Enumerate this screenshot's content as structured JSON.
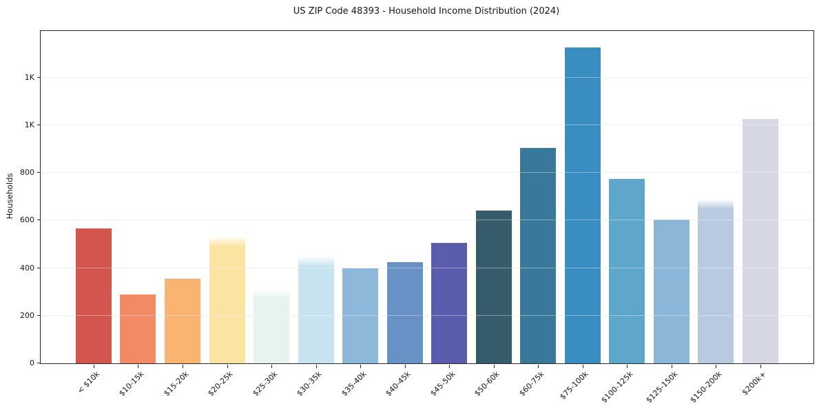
{
  "figure": {
    "kind": "static-matplotlib-figure",
    "background": "#ffffff"
  },
  "chart_data": {
    "type": "bar",
    "title": "US ZIP Code 48393 - Household Income Distribution (2024)",
    "xlabel": "",
    "ylabel": "Households",
    "categories": [
      "< $10k",
      "$10-15k",
      "$15-20k",
      "$20-25k",
      "$25-30k",
      "$30-35k",
      "$35-40k",
      "$40-45k",
      "$45-50k",
      "$50-60k",
      "$60-75k",
      "$75-100k",
      "$100-125k",
      "$125-150k",
      "$150-200k",
      "$200k+"
    ],
    "values": [
      565,
      290,
      355,
      530,
      310,
      445,
      400,
      425,
      505,
      640,
      905,
      1325,
      775,
      605,
      685,
      1025
    ],
    "bar_colors": [
      "#d4544e",
      "#f28a66",
      "#fab471",
      "#fbe3a2",
      "#e7f3f0",
      "#c6e3ef",
      "#8db8d9",
      "#6891c5",
      "#5a5dab",
      "#365c6c",
      "#38789a",
      "#398dc0",
      "#5fa6cb",
      "#8cb6d7",
      "#b9c9df",
      "#d5d7e5"
    ],
    "soft_top_bars": [
      3,
      4,
      5,
      14
    ],
    "y_ticks": {
      "values": [
        0,
        200,
        400,
        600,
        800,
        1000,
        1200
      ],
      "labels": [
        "0",
        "200",
        "400",
        "600",
        "800",
        "1K",
        "1K"
      ]
    },
    "ylim": [
      0,
      1395
    ],
    "x_tick_rotation": 45,
    "grid": "horizontal",
    "legend": "none",
    "grid_color": "#e9e9e9",
    "spine_color": "#262626",
    "text_color": "#141414"
  }
}
